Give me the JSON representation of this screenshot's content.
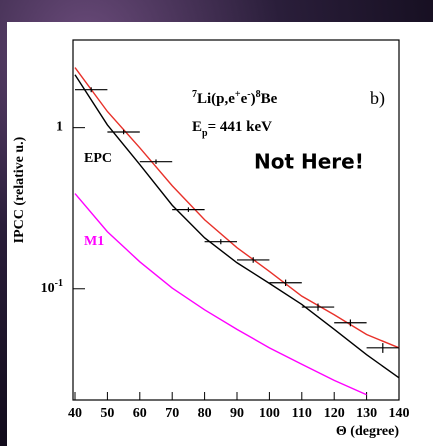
{
  "chart_data": {
    "type": "line",
    "ylabel": "IPCC (relative u.)",
    "xlabel": "Θ (degree)",
    "panel_label": "b)",
    "reaction_parts": [
      {
        "text": "7",
        "sup": true
      },
      {
        "text": "Li(p,e",
        "sup": false
      },
      {
        "text": "+",
        "sup": true
      },
      {
        "text": "e",
        "sup": false
      },
      {
        "text": "-",
        "sup": true
      },
      {
        "text": ")",
        "sup": false
      },
      {
        "text": "8",
        "sup": true
      },
      {
        "text": "Be",
        "sup": false
      }
    ],
    "energy_parts": [
      {
        "text": "E",
        "sub": false
      },
      {
        "text": "p",
        "sub": true
      },
      {
        "text": "= 441 keV",
        "sub": false
      }
    ],
    "annotation": "Not Here!",
    "log_y": true,
    "xlim": [
      40,
      140
    ],
    "xticks": [
      40,
      50,
      60,
      70,
      80,
      90,
      100,
      110,
      120,
      130,
      140
    ],
    "ylim": [
      0.0204,
      3.5
    ],
    "yticks": [
      {
        "value": 1,
        "label": "1"
      },
      {
        "value": 0.1,
        "label": "10",
        "exponent": "-1"
      }
    ],
    "data_points": {
      "color": "#000000",
      "x": [
        45,
        55,
        65,
        75,
        85,
        95,
        105,
        115,
        125,
        135
      ],
      "values": [
        1.72,
        0.94,
        0.615,
        0.31,
        0.196,
        0.151,
        0.109,
        0.077,
        0.0615,
        0.043
      ],
      "xerr": [
        5,
        5,
        5,
        5,
        5,
        5,
        5,
        5,
        5,
        5
      ],
      "yerr": [
        0.06,
        0.03,
        0.02,
        0.01,
        0.007,
        0.006,
        0.005,
        0.004,
        0.003,
        0.003
      ]
    },
    "x": [
      40,
      50,
      60,
      70,
      80,
      90,
      100,
      110,
      120,
      130,
      140
    ],
    "series": [
      {
        "color": "#e8312a",
        "values": [
          2.36,
          1.26,
          0.75,
          0.436,
          0.268,
          0.18,
          0.128,
          0.09,
          0.069,
          0.052,
          0.043
        ]
      },
      {
        "name": "EPC",
        "color": "#000000",
        "values": [
          2.13,
          1.04,
          0.59,
          0.33,
          0.207,
          0.145,
          0.108,
          0.08,
          0.056,
          0.039,
          0.028
        ]
      },
      {
        "name": "M1",
        "color": "#ff00ff",
        "values": [
          0.39,
          0.226,
          0.147,
          0.101,
          0.074,
          0.056,
          0.043,
          0.034,
          0.027,
          0.022,
          null
        ]
      }
    ]
  }
}
